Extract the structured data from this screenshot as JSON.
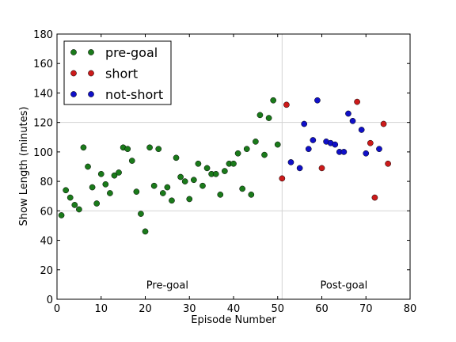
{
  "chart_data": {
    "type": "scatter",
    "xlabel": "Episode Number",
    "ylabel": "Show Length (minutes)",
    "xlim": [
      0,
      80
    ],
    "ylim": [
      0,
      180
    ],
    "xticks": [
      "0",
      "10",
      "20",
      "30",
      "40",
      "50",
      "60",
      "70",
      "80"
    ],
    "yticks": [
      "0",
      "20",
      "40",
      "60",
      "80",
      "100",
      "120",
      "140",
      "160",
      "180"
    ],
    "grid": {
      "vertical_at_x": 51,
      "horizontal_at_y": [
        60,
        120
      ]
    },
    "legend": {
      "placement": "top-left"
    },
    "annotations": [
      {
        "text": "Pre-goal",
        "x": 25,
        "y": 10
      },
      {
        "text": "Post-goal",
        "x": 65,
        "y": 10
      }
    ],
    "series": [
      {
        "name": "pre-goal",
        "color": "#1a7a1a",
        "x": [
          1,
          2,
          3,
          4,
          5,
          6,
          7,
          8,
          9,
          10,
          11,
          12,
          13,
          14,
          15,
          16,
          17,
          18,
          19,
          20,
          21,
          22,
          23,
          24,
          25,
          26,
          27,
          28,
          29,
          30,
          31,
          32,
          33,
          34,
          35,
          36,
          37,
          38,
          39,
          40,
          41,
          42,
          43,
          44,
          45,
          46,
          47,
          48,
          49,
          50
        ],
        "y": [
          57,
          74,
          69,
          64,
          61,
          103,
          90,
          76,
          65,
          85,
          78,
          72,
          84,
          86,
          103,
          102,
          94,
          73,
          58,
          46,
          103,
          77,
          102,
          72,
          76,
          67,
          96,
          83,
          80,
          68,
          81,
          92,
          77,
          89,
          85,
          85,
          71,
          87,
          92,
          92,
          99,
          75,
          102,
          71,
          107,
          125,
          98,
          123,
          135,
          105
        ]
      },
      {
        "name": "short",
        "color": "#cc1a1a",
        "x": [
          51,
          52,
          60,
          68,
          71,
          72,
          74,
          75
        ],
        "y": [
          82,
          132,
          89,
          134,
          106,
          69,
          119,
          92
        ]
      },
      {
        "name": "not-short",
        "color": "#1010c8",
        "x": [
          53,
          55,
          56,
          57,
          58,
          59,
          61,
          62,
          63,
          64,
          65,
          66,
          67,
          69,
          70,
          73
        ],
        "y": [
          93,
          89,
          119,
          102,
          108,
          135,
          107,
          106,
          105,
          100,
          100,
          126,
          121,
          115,
          99,
          102
        ]
      }
    ]
  }
}
